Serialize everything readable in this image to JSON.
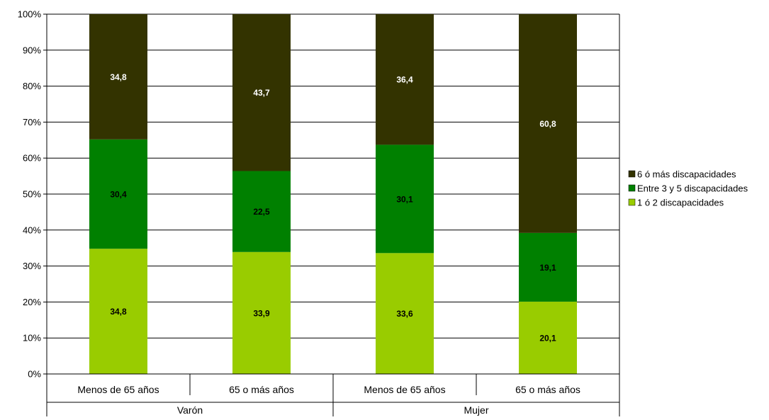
{
  "chart_data": {
    "type": "bar",
    "stacked": true,
    "percent": true,
    "title": "",
    "xlabel": "",
    "ylabel": "",
    "ylim": [
      0,
      100
    ],
    "y_ticks": [
      "0%",
      "10%",
      "20%",
      "30%",
      "40%",
      "50%",
      "60%",
      "70%",
      "80%",
      "90%",
      "100%"
    ],
    "grid": true,
    "legend_position": "right",
    "groups": [
      {
        "label": "Varón",
        "categories": [
          "Menos de 65 años",
          "65 o más años"
        ]
      },
      {
        "label": "Mujer",
        "categories": [
          "Menos de 65 años",
          "65 o más años"
        ]
      }
    ],
    "categories": [
      "Menos de 65 años",
      "65 o más años",
      "Menos de 65 años",
      "65 o más años"
    ],
    "series": [
      {
        "name": "1 ó 2 discapacidades",
        "color": "#99cc00",
        "label_color": "#000000",
        "values": [
          34.8,
          33.9,
          33.6,
          20.1
        ],
        "labels": [
          "34,8",
          "33,9",
          "33,6",
          "20,1"
        ]
      },
      {
        "name": "Entre 3 y 5 discapacidades",
        "color": "#008000",
        "label_color": "#000000",
        "values": [
          30.4,
          22.5,
          30.1,
          19.1
        ],
        "labels": [
          "30,4",
          "22,5",
          "30,1",
          "19,1"
        ]
      },
      {
        "name": "6 ó más discapacidades",
        "color": "#333300",
        "label_color": "#ffffff",
        "values": [
          34.8,
          43.7,
          36.4,
          60.8
        ],
        "labels": [
          "34,8",
          "43,7",
          "36,4",
          "60,8"
        ]
      }
    ],
    "legend_order": [
      "6 ó más discapacidades",
      "Entre 3 y 5 discapacidades",
      "1 ó 2 discapacidades"
    ]
  }
}
